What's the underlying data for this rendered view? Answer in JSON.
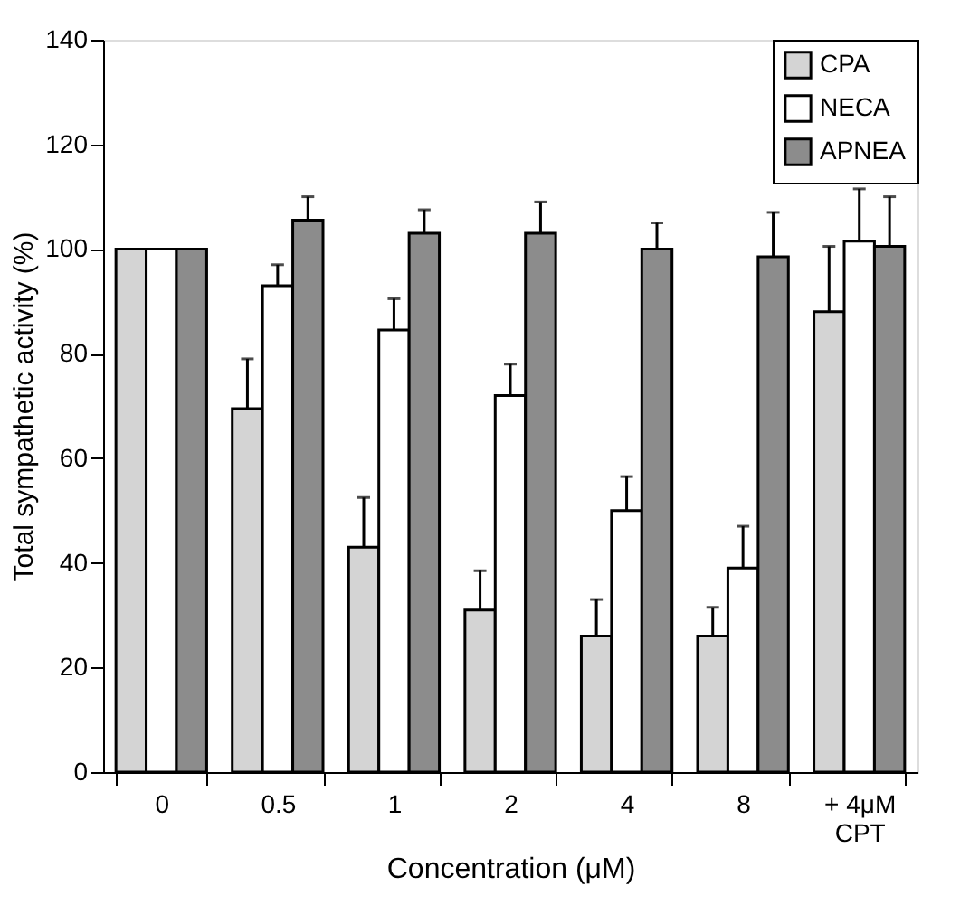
{
  "chart_data": {
    "type": "bar",
    "xlabel": "Concentration (μM)",
    "ylabel": "Total sympathetic activity (%)",
    "categories": [
      "0",
      "0.5",
      "1",
      "2",
      "4",
      "8",
      "+ 4μM CPT"
    ],
    "series": [
      {
        "name": "CPA",
        "color": "#d4d4d4",
        "values": [
          100,
          69.5,
          43,
          31,
          26,
          26,
          88
        ],
        "errors": [
          null,
          [
            69.5,
            79
          ],
          [
            43,
            52.5
          ],
          [
            31,
            38.5
          ],
          [
            26,
            33
          ],
          [
            26,
            31.5
          ],
          [
            88,
            100.5
          ]
        ]
      },
      {
        "name": "NECA",
        "color": "#ffffff",
        "values": [
          100,
          93,
          84.5,
          72,
          50,
          39,
          101.5
        ],
        "errors": [
          null,
          [
            93,
            97
          ],
          [
            84.5,
            90.5
          ],
          [
            72,
            78
          ],
          [
            50,
            56.5
          ],
          [
            39,
            47
          ],
          [
            101.5,
            111.5
          ]
        ]
      },
      {
        "name": "APNEA",
        "color": "#8c8c8c",
        "values": [
          100,
          105.5,
          103,
          103,
          100,
          98.5,
          100.5
        ],
        "errors": [
          null,
          [
            105.5,
            110
          ],
          [
            103,
            107.5
          ],
          [
            103,
            109
          ],
          [
            100,
            105
          ],
          [
            98.5,
            107
          ],
          [
            100.5,
            110
          ]
        ]
      }
    ],
    "ylim": [
      0,
      140
    ],
    "yticks": [
      0,
      20,
      40,
      60,
      80,
      100,
      120,
      140
    ],
    "grid": false,
    "legend": "top right"
  }
}
